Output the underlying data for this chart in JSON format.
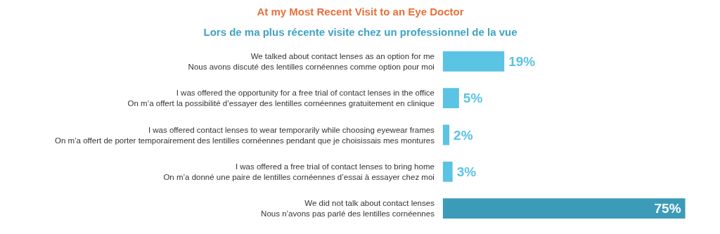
{
  "chart_data": {
    "type": "bar",
    "orientation": "horizontal",
    "title": "At my Most Recent Visit to an Eye Doctor",
    "subtitle": "Lors de ma plus récente visite chez un professionnel de la vue",
    "categories": [
      "We talked about contact lenses as an option for me\nNous avons discuté des lentilles cornéennes comme option pour moi",
      "I was offered the opportunity for a free trial of contact lenses in the office\nOn m’a offert la possibilité d’essayer des lentilles cornéennes gratuitement en clinique",
      "I was offered contact lenses to wear temporarily while choosing eyewear frames\nOn m’a offert de porter temporairement des lentilles cornéennes pendant que je choisissais mes montures",
      "I was offered a free trial of contact lenses to bring home\nOn m’a donné une paire de lentilles cornéennes d’essai à essayer chez moi",
      "We did not talk about contact lenses\nNous n’avons pas parlé des lentilles cornéennes"
    ],
    "values": [
      19,
      5,
      2,
      3,
      75
    ],
    "value_labels": [
      "19%",
      "5%",
      "2%",
      "3%",
      "75%"
    ],
    "colors": [
      "#5bc3e3",
      "#5bc3e3",
      "#5bc3e3",
      "#5bc3e3",
      "#3c9bb9"
    ]
  }
}
